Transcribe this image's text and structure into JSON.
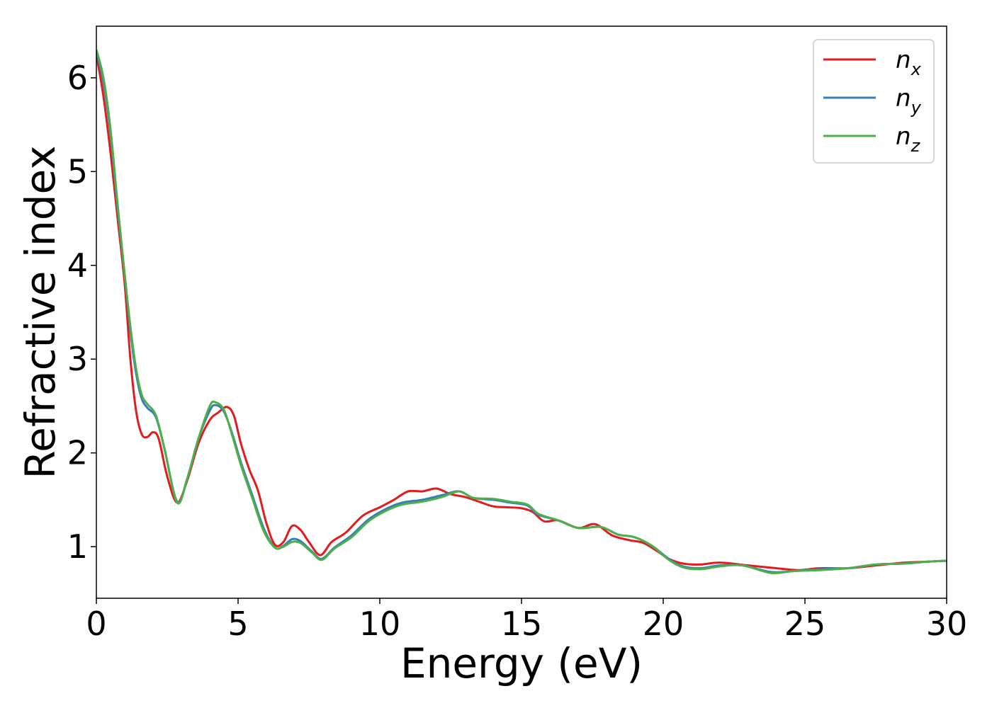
{
  "chart_data": {
    "type": "line",
    "xlabel": "Energy (eV)",
    "ylabel": "Refractive index",
    "xlim": [
      0,
      30
    ],
    "ylim": [
      0.45,
      6.55
    ],
    "xticks": [
      0,
      5,
      10,
      15,
      20,
      25,
      30
    ],
    "yticks": [
      1,
      2,
      3,
      4,
      5,
      6
    ],
    "grid": false,
    "legend_position": "top-right",
    "series": [
      {
        "name": "n_x",
        "label_main": "n",
        "label_sub": "x",
        "color": "#e41a1c",
        "points": [
          [
            0,
            6.25
          ],
          [
            0.25,
            5.8
          ],
          [
            0.5,
            5.2
          ],
          [
            0.75,
            4.5
          ],
          [
            1.0,
            3.8
          ],
          [
            1.2,
            3.0
          ],
          [
            1.4,
            2.45
          ],
          [
            1.6,
            2.2
          ],
          [
            1.8,
            2.17
          ],
          [
            2.0,
            2.22
          ],
          [
            2.2,
            2.15
          ],
          [
            2.5,
            1.75
          ],
          [
            2.85,
            1.47
          ],
          [
            3.2,
            1.7
          ],
          [
            3.6,
            2.1
          ],
          [
            4.0,
            2.35
          ],
          [
            4.3,
            2.43
          ],
          [
            4.6,
            2.49
          ],
          [
            4.85,
            2.4
          ],
          [
            5.1,
            2.1
          ],
          [
            5.4,
            1.82
          ],
          [
            5.7,
            1.6
          ],
          [
            6.0,
            1.25
          ],
          [
            6.3,
            1.02
          ],
          [
            6.6,
            1.05
          ],
          [
            6.9,
            1.22
          ],
          [
            7.2,
            1.18
          ],
          [
            7.5,
            1.05
          ],
          [
            7.9,
            0.91
          ],
          [
            8.3,
            1.05
          ],
          [
            8.8,
            1.15
          ],
          [
            9.4,
            1.33
          ],
          [
            10.0,
            1.42
          ],
          [
            10.5,
            1.5
          ],
          [
            11.0,
            1.59
          ],
          [
            11.5,
            1.59
          ],
          [
            12.0,
            1.62
          ],
          [
            12.5,
            1.56
          ],
          [
            13.0,
            1.53
          ],
          [
            13.5,
            1.48
          ],
          [
            14.0,
            1.43
          ],
          [
            14.5,
            1.42
          ],
          [
            15.0,
            1.41
          ],
          [
            15.4,
            1.37
          ],
          [
            15.8,
            1.27
          ],
          [
            16.3,
            1.28
          ],
          [
            17.0,
            1.2
          ],
          [
            17.6,
            1.24
          ],
          [
            18.2,
            1.12
          ],
          [
            18.8,
            1.07
          ],
          [
            19.3,
            1.04
          ],
          [
            19.8,
            0.95
          ],
          [
            20.2,
            0.87
          ],
          [
            20.7,
            0.82
          ],
          [
            21.3,
            0.81
          ],
          [
            22.0,
            0.83
          ],
          [
            23.0,
            0.8
          ],
          [
            24.0,
            0.77
          ],
          [
            24.8,
            0.75
          ],
          [
            25.5,
            0.77
          ],
          [
            26.5,
            0.77
          ],
          [
            27.5,
            0.8
          ],
          [
            28.5,
            0.83
          ],
          [
            29.3,
            0.84
          ],
          [
            30.0,
            0.85
          ]
        ]
      },
      {
        "name": "n_y",
        "label_main": "n",
        "label_sub": "y",
        "color": "#377eb8",
        "points": [
          [
            0,
            6.28
          ],
          [
            0.25,
            5.95
          ],
          [
            0.5,
            5.4
          ],
          [
            0.75,
            4.6
          ],
          [
            1.0,
            3.9
          ],
          [
            1.2,
            3.3
          ],
          [
            1.4,
            2.85
          ],
          [
            1.6,
            2.58
          ],
          [
            1.8,
            2.48
          ],
          [
            2.1,
            2.38
          ],
          [
            2.4,
            2.05
          ],
          [
            2.85,
            1.48
          ],
          [
            3.2,
            1.72
          ],
          [
            3.6,
            2.15
          ],
          [
            4.0,
            2.45
          ],
          [
            4.2,
            2.51
          ],
          [
            4.5,
            2.44
          ],
          [
            4.8,
            2.2
          ],
          [
            5.1,
            1.9
          ],
          [
            5.5,
            1.55
          ],
          [
            5.9,
            1.2
          ],
          [
            6.3,
            0.99
          ],
          [
            6.6,
            1.01
          ],
          [
            6.9,
            1.08
          ],
          [
            7.2,
            1.06
          ],
          [
            7.6,
            0.95
          ],
          [
            7.95,
            0.87
          ],
          [
            8.4,
            0.99
          ],
          [
            9.0,
            1.12
          ],
          [
            9.6,
            1.29
          ],
          [
            10.2,
            1.4
          ],
          [
            10.8,
            1.47
          ],
          [
            11.5,
            1.5
          ],
          [
            12.2,
            1.55
          ],
          [
            12.8,
            1.59
          ],
          [
            13.3,
            1.52
          ],
          [
            14.0,
            1.5
          ],
          [
            14.6,
            1.47
          ],
          [
            15.2,
            1.44
          ],
          [
            15.6,
            1.34
          ],
          [
            16.3,
            1.28
          ],
          [
            17.0,
            1.2
          ],
          [
            17.8,
            1.21
          ],
          [
            18.4,
            1.13
          ],
          [
            19.0,
            1.1
          ],
          [
            19.6,
            1.01
          ],
          [
            20.2,
            0.87
          ],
          [
            20.7,
            0.79
          ],
          [
            21.3,
            0.77
          ],
          [
            22.0,
            0.8
          ],
          [
            22.8,
            0.8
          ],
          [
            23.8,
            0.73
          ],
          [
            24.6,
            0.74
          ],
          [
            25.5,
            0.76
          ],
          [
            26.5,
            0.77
          ],
          [
            27.5,
            0.81
          ],
          [
            28.5,
            0.82
          ],
          [
            29.3,
            0.84
          ],
          [
            30.0,
            0.85
          ]
        ]
      },
      {
        "name": "n_z",
        "label_main": "n",
        "label_sub": "z",
        "color": "#4daf4a",
        "points": [
          [
            0,
            6.3
          ],
          [
            0.25,
            6.0
          ],
          [
            0.5,
            5.45
          ],
          [
            0.75,
            4.65
          ],
          [
            1.0,
            3.9
          ],
          [
            1.2,
            3.35
          ],
          [
            1.4,
            2.9
          ],
          [
            1.6,
            2.62
          ],
          [
            1.8,
            2.52
          ],
          [
            2.1,
            2.4
          ],
          [
            2.4,
            2.05
          ],
          [
            2.85,
            1.47
          ],
          [
            3.2,
            1.72
          ],
          [
            3.6,
            2.15
          ],
          [
            4.0,
            2.5
          ],
          [
            4.2,
            2.54
          ],
          [
            4.5,
            2.46
          ],
          [
            4.8,
            2.18
          ],
          [
            5.1,
            1.87
          ],
          [
            5.5,
            1.52
          ],
          [
            5.9,
            1.17
          ],
          [
            6.3,
            0.99
          ],
          [
            6.6,
            1.0
          ],
          [
            6.9,
            1.05
          ],
          [
            7.2,
            1.04
          ],
          [
            7.6,
            0.94
          ],
          [
            7.95,
            0.86
          ],
          [
            8.4,
            0.98
          ],
          [
            9.0,
            1.1
          ],
          [
            9.6,
            1.27
          ],
          [
            10.2,
            1.38
          ],
          [
            10.8,
            1.45
          ],
          [
            11.5,
            1.48
          ],
          [
            12.2,
            1.53
          ],
          [
            12.8,
            1.59
          ],
          [
            13.3,
            1.52
          ],
          [
            14.0,
            1.51
          ],
          [
            14.6,
            1.48
          ],
          [
            15.2,
            1.45
          ],
          [
            15.6,
            1.35
          ],
          [
            16.3,
            1.28
          ],
          [
            17.0,
            1.2
          ],
          [
            17.8,
            1.21
          ],
          [
            18.4,
            1.13
          ],
          [
            19.0,
            1.1
          ],
          [
            19.6,
            1.01
          ],
          [
            20.2,
            0.86
          ],
          [
            20.7,
            0.78
          ],
          [
            21.3,
            0.76
          ],
          [
            22.0,
            0.79
          ],
          [
            22.8,
            0.8
          ],
          [
            23.8,
            0.72
          ],
          [
            24.6,
            0.74
          ],
          [
            25.5,
            0.75
          ],
          [
            26.5,
            0.77
          ],
          [
            27.5,
            0.81
          ],
          [
            28.5,
            0.82
          ],
          [
            29.3,
            0.84
          ],
          [
            30.0,
            0.85
          ]
        ]
      }
    ]
  }
}
